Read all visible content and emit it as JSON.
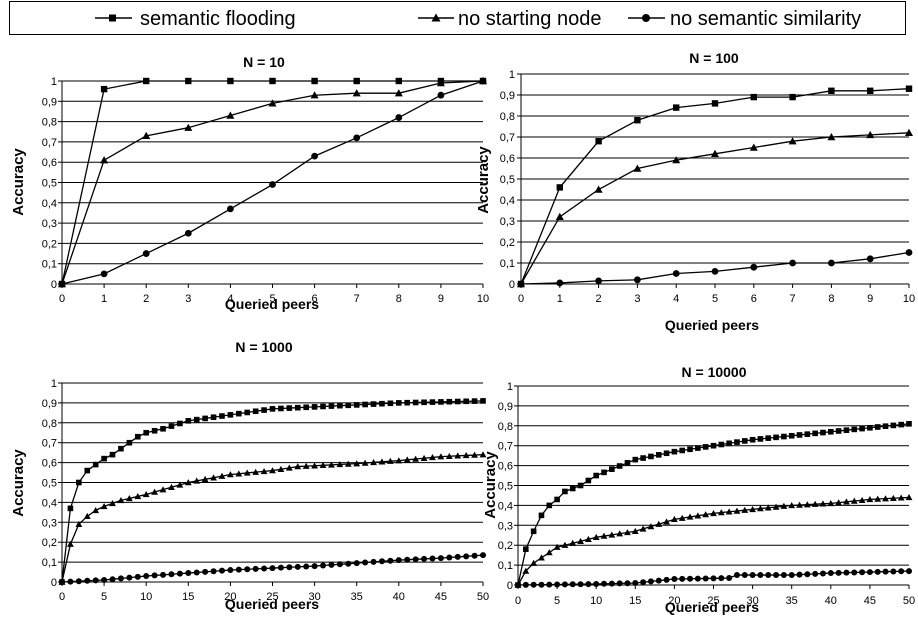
{
  "legend": [
    {
      "name": "semantic flooding",
      "marker": "square"
    },
    {
      "name": "no starting node",
      "marker": "triangle"
    },
    {
      "name": "no semantic similarity",
      "marker": "circle"
    }
  ],
  "chart_data": [
    {
      "type": "line",
      "title": "N = 10",
      "xlabel": "Queried peers",
      "ylabel": "Accuracy",
      "xlim": [
        0,
        10
      ],
      "ylim": [
        0,
        1
      ],
      "x_ticks": [
        0,
        1,
        2,
        3,
        4,
        5,
        6,
        7,
        8,
        9,
        10
      ],
      "y_ticks": [
        "0",
        "0,1",
        "0,2",
        "0,3",
        "0,4",
        "0,5",
        "0,6",
        "0,7",
        "0,8",
        "0,9",
        "1"
      ],
      "grid": true,
      "x": [
        0,
        1,
        2,
        3,
        4,
        5,
        6,
        7,
        8,
        9,
        10
      ],
      "series": [
        {
          "name": "semantic flooding",
          "marker": "square",
          "values": [
            0,
            0.96,
            1,
            1,
            1,
            1,
            1,
            1,
            1,
            1,
            1
          ]
        },
        {
          "name": "no starting node",
          "marker": "triangle",
          "values": [
            0,
            0.61,
            0.73,
            0.77,
            0.83,
            0.89,
            0.93,
            0.94,
            0.94,
            0.99,
            1
          ]
        },
        {
          "name": "no semantic similarity",
          "marker": "circle",
          "values": [
            0,
            0.05,
            0.15,
            0.25,
            0.37,
            0.49,
            0.63,
            0.72,
            0.82,
            0.93,
            1
          ]
        }
      ]
    },
    {
      "type": "line",
      "title": "N = 100",
      "xlabel": "Queried peers",
      "ylabel": "Accuracy",
      "xlim": [
        0,
        10
      ],
      "ylim": [
        0,
        1
      ],
      "x_ticks": [
        0,
        1,
        2,
        3,
        4,
        5,
        6,
        7,
        8,
        9,
        10
      ],
      "y_ticks": [
        "0",
        "0,1",
        "0,2",
        "0,3",
        "0,4",
        "0,5",
        "0,6",
        "0,7",
        "0,8",
        "0,9",
        "1"
      ],
      "grid": true,
      "x": [
        0,
        1,
        2,
        3,
        4,
        5,
        6,
        7,
        8,
        9,
        10
      ],
      "series": [
        {
          "name": "semantic flooding",
          "marker": "square",
          "values": [
            0,
            0.46,
            0.68,
            0.78,
            0.84,
            0.86,
            0.89,
            0.89,
            0.92,
            0.92,
            0.93
          ]
        },
        {
          "name": "no starting node",
          "marker": "triangle",
          "values": [
            0,
            0.32,
            0.45,
            0.55,
            0.59,
            0.62,
            0.65,
            0.68,
            0.7,
            0.71,
            0.72
          ]
        },
        {
          "name": "no semantic similarity",
          "marker": "circle",
          "values": [
            0,
            0.005,
            0.015,
            0.02,
            0.05,
            0.06,
            0.08,
            0.1,
            0.1,
            0.12,
            0.15
          ]
        }
      ]
    },
    {
      "type": "line",
      "title": "N = 1000",
      "xlabel": "Queried peers",
      "ylabel": "Accuracy",
      "xlim": [
        0,
        50
      ],
      "ylim": [
        0,
        1
      ],
      "x_ticks": [
        0,
        5,
        10,
        15,
        20,
        25,
        30,
        35,
        40,
        45,
        50
      ],
      "y_ticks": [
        "0",
        "0,1",
        "0,2",
        "0,3",
        "0,4",
        "0,5",
        "0,6",
        "0,7",
        "0,8",
        "0,9",
        "1"
      ],
      "grid": true,
      "anchors": [
        {
          "name": "semantic flooding",
          "marker": "square",
          "points": [
            [
              0,
              0
            ],
            [
              1,
              0.37
            ],
            [
              2,
              0.5
            ],
            [
              3,
              0.56
            ],
            [
              4,
              0.59
            ],
            [
              5,
              0.62
            ],
            [
              6,
              0.64
            ],
            [
              7,
              0.67
            ],
            [
              8,
              0.7
            ],
            [
              9,
              0.73
            ],
            [
              10,
              0.75
            ],
            [
              12,
              0.77
            ],
            [
              15,
              0.81
            ],
            [
              20,
              0.84
            ],
            [
              25,
              0.87
            ],
            [
              30,
              0.88
            ],
            [
              35,
              0.89
            ],
            [
              40,
              0.9
            ],
            [
              45,
              0.905
            ],
            [
              50,
              0.91
            ]
          ]
        },
        {
          "name": "no starting node",
          "marker": "triangle",
          "points": [
            [
              0,
              0
            ],
            [
              1,
              0.19
            ],
            [
              2,
              0.29
            ],
            [
              3,
              0.33
            ],
            [
              4,
              0.36
            ],
            [
              5,
              0.38
            ],
            [
              7,
              0.41
            ],
            [
              10,
              0.44
            ],
            [
              15,
              0.5
            ],
            [
              20,
              0.54
            ],
            [
              25,
              0.56
            ],
            [
              28,
              0.58
            ],
            [
              35,
              0.595
            ],
            [
              40,
              0.61
            ],
            [
              45,
              0.63
            ],
            [
              50,
              0.64
            ]
          ]
        },
        {
          "name": "no semantic similarity",
          "marker": "circle",
          "points": [
            [
              0,
              0
            ],
            [
              5,
              0.01
            ],
            [
              10,
              0.03
            ],
            [
              15,
              0.045
            ],
            [
              20,
              0.06
            ],
            [
              25,
              0.07
            ],
            [
              30,
              0.08
            ],
            [
              35,
              0.095
            ],
            [
              40,
              0.11
            ],
            [
              45,
              0.12
            ],
            [
              50,
              0.135
            ]
          ]
        }
      ]
    },
    {
      "type": "line",
      "title": "N = 10000",
      "xlabel": "Queried peers",
      "ylabel": "Accuracy",
      "xlim": [
        0,
        50
      ],
      "ylim": [
        0,
        1
      ],
      "x_ticks": [
        0,
        5,
        10,
        15,
        20,
        25,
        30,
        35,
        40,
        45,
        50
      ],
      "y_ticks": [
        "0",
        "0,1",
        "0,2",
        "0,3",
        "0,4",
        "0,5",
        "0,6",
        "0,7",
        "0,8",
        "0,9",
        "1"
      ],
      "grid": true,
      "anchors": [
        {
          "name": "semantic flooding",
          "marker": "square",
          "points": [
            [
              0,
              0
            ],
            [
              1,
              0.18
            ],
            [
              2,
              0.27
            ],
            [
              3,
              0.35
            ],
            [
              4,
              0.4
            ],
            [
              5,
              0.43
            ],
            [
              6,
              0.47
            ],
            [
              8,
              0.5
            ],
            [
              10,
              0.55
            ],
            [
              15,
              0.63
            ],
            [
              20,
              0.67
            ],
            [
              25,
              0.7
            ],
            [
              30,
              0.73
            ],
            [
              35,
              0.75
            ],
            [
              40,
              0.77
            ],
            [
              45,
              0.79
            ],
            [
              50,
              0.81
            ]
          ]
        },
        {
          "name": "no starting node",
          "marker": "triangle",
          "points": [
            [
              0,
              0
            ],
            [
              1,
              0.07
            ],
            [
              2,
              0.11
            ],
            [
              5,
              0.19
            ],
            [
              10,
              0.24
            ],
            [
              15,
              0.27
            ],
            [
              20,
              0.33
            ],
            [
              25,
              0.36
            ],
            [
              30,
              0.38
            ],
            [
              35,
              0.4
            ],
            [
              40,
              0.41
            ],
            [
              45,
              0.43
            ],
            [
              50,
              0.44
            ]
          ]
        },
        {
          "name": "no semantic similarity",
          "marker": "circle",
          "points": [
            [
              0,
              0
            ],
            [
              10,
              0.005
            ],
            [
              15,
              0.01
            ],
            [
              20,
              0.03
            ],
            [
              27,
              0.035
            ],
            [
              28,
              0.05
            ],
            [
              35,
              0.05
            ],
            [
              40,
              0.06
            ],
            [
              50,
              0.07
            ]
          ]
        }
      ]
    }
  ]
}
